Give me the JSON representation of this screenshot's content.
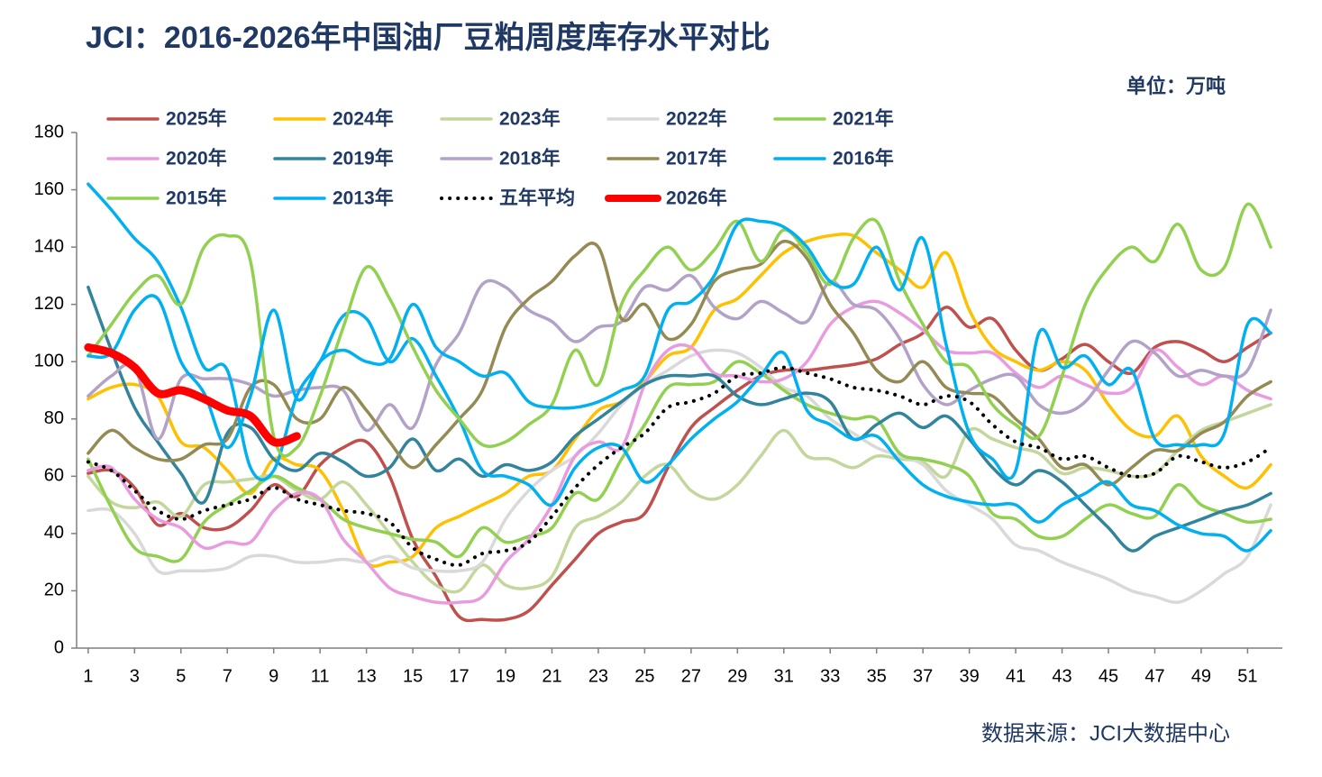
{
  "chart_data": {
    "type": "line",
    "title": "JCI：2016-2026年中国油厂豆粕周度库存水平对比",
    "unit": "单位：万吨",
    "source": "数据来源：JCI大数据中心",
    "x": [
      1,
      2,
      3,
      4,
      5,
      6,
      7,
      8,
      9,
      10,
      11,
      12,
      13,
      14,
      15,
      16,
      17,
      18,
      19,
      20,
      21,
      22,
      23,
      24,
      25,
      26,
      27,
      28,
      29,
      30,
      31,
      32,
      33,
      34,
      35,
      36,
      37,
      38,
      39,
      40,
      41,
      42,
      43,
      44,
      45,
      46,
      47,
      48,
      49,
      50,
      51,
      52
    ],
    "xlim": [
      0.5,
      52.5
    ],
    "xticks": [
      1,
      3,
      5,
      7,
      9,
      11,
      13,
      15,
      17,
      19,
      21,
      23,
      25,
      27,
      29,
      31,
      33,
      35,
      37,
      39,
      41,
      43,
      45,
      47,
      49,
      51
    ],
    "ylim": [
      0,
      180
    ],
    "yticks": [
      0,
      20,
      40,
      60,
      80,
      100,
      120,
      140,
      160,
      180
    ],
    "grid": false,
    "legend": "top",
    "series": [
      {
        "name": "2025年",
        "color": "#c0504d",
        "style": "solid",
        "values": [
          61,
          62,
          56,
          43,
          47,
          42,
          42,
          48,
          57,
          53,
          64,
          70,
          72,
          60,
          38,
          25,
          11,
          10,
          10,
          13,
          22,
          31,
          40,
          44,
          47,
          63,
          77,
          84,
          90,
          95,
          97,
          97,
          98,
          99,
          101,
          106,
          110,
          119,
          112,
          115,
          104,
          97,
          101,
          106,
          100,
          96,
          105,
          107,
          104,
          100,
          105,
          110
        ]
      },
      {
        "name": "2024年",
        "color": "#ffc000",
        "style": "solid",
        "values": [
          87,
          91,
          92,
          88,
          72,
          70,
          62,
          54,
          66,
          64,
          62,
          48,
          30,
          30,
          32,
          42,
          46,
          50,
          54,
          60,
          62,
          73,
          83,
          86,
          93,
          102,
          105,
          118,
          122,
          130,
          138,
          142,
          144,
          144,
          138,
          132,
          126,
          138,
          118,
          105,
          100,
          97,
          100,
          97,
          85,
          76,
          74,
          81,
          67,
          60,
          56,
          64
        ]
      },
      {
        "name": "2023年",
        "color": "#c3d69b",
        "style": "solid",
        "values": [
          60,
          51,
          49,
          51,
          46,
          57,
          58,
          59,
          60,
          55,
          52,
          58,
          50,
          40,
          30,
          22,
          20,
          29,
          22,
          21,
          25,
          42,
          46,
          51,
          60,
          64,
          55,
          52,
          57,
          67,
          76,
          67,
          66,
          63,
          67,
          66,
          65,
          60,
          76,
          73,
          70,
          68,
          61,
          63,
          62,
          60,
          61,
          69,
          76,
          79,
          82,
          85
        ]
      },
      {
        "name": "2022年",
        "color": "#d9d9d9",
        "style": "solid",
        "values": [
          48,
          48,
          40,
          27,
          27,
          27,
          28,
          32,
          32,
          30,
          30,
          31,
          30,
          32,
          28,
          27,
          27,
          30,
          45,
          55,
          62,
          67,
          75,
          85,
          92,
          97,
          102,
          104,
          103,
          98,
          91,
          88,
          80,
          75,
          70,
          67,
          64,
          55,
          50,
          45,
          36,
          34,
          30,
          27,
          24,
          20,
          18,
          16,
          20,
          26,
          32,
          50
        ]
      },
      {
        "name": "2021年",
        "color": "#92d050",
        "style": "solid",
        "values": [
          66,
          49,
          35,
          32,
          31,
          44,
          50,
          55,
          60,
          56,
          52,
          45,
          42,
          40,
          38,
          37,
          32,
          42,
          37,
          39,
          42,
          54,
          52,
          66,
          78,
          91,
          92,
          93,
          100,
          96,
          90,
          85,
          82,
          80,
          80,
          68,
          66,
          64,
          60,
          47,
          45,
          39,
          39,
          45,
          50,
          47,
          46,
          57,
          50,
          47,
          44,
          45
        ]
      },
      {
        "name": "2020年",
        "color": "#e99be0",
        "style": "solid",
        "values": [
          62,
          63,
          52,
          45,
          42,
          35,
          37,
          37,
          48,
          54,
          52,
          38,
          30,
          21,
          18,
          16,
          16,
          18,
          30,
          38,
          50,
          67,
          72,
          70,
          92,
          104,
          105,
          96,
          95,
          93,
          94,
          100,
          113,
          119,
          121,
          117,
          111,
          104,
          103,
          103,
          96,
          91,
          95,
          92,
          89,
          91,
          104,
          98,
          92,
          95,
          90,
          87
        ]
      },
      {
        "name": "2019年",
        "color": "#31849b",
        "style": "solid",
        "values": [
          126,
          104,
          84,
          72,
          61,
          51,
          75,
          77,
          66,
          62,
          68,
          65,
          60,
          63,
          73,
          62,
          66,
          60,
          64,
          62,
          65,
          74,
          80,
          86,
          92,
          95,
          95,
          95,
          88,
          85,
          87,
          89,
          86,
          73,
          78,
          82,
          77,
          81,
          73,
          63,
          57,
          62,
          58,
          50,
          42,
          34,
          39,
          42,
          45,
          48,
          50,
          54
        ]
      },
      {
        "name": "2018年",
        "color": "#b3a2c7",
        "style": "solid",
        "values": [
          88,
          95,
          98,
          73,
          94,
          94,
          94,
          92,
          88,
          90,
          91,
          90,
          76,
          85,
          77,
          99,
          110,
          127,
          126,
          118,
          114,
          107,
          112,
          114,
          126,
          125,
          130,
          119,
          115,
          121,
          117,
          114,
          128,
          120,
          118,
          108,
          92,
          85,
          90,
          94,
          95,
          85,
          82,
          86,
          97,
          107,
          103,
          95,
          97,
          95,
          97,
          118
        ]
      },
      {
        "name": "2017年",
        "color": "#948a54",
        "style": "solid",
        "values": [
          68,
          76,
          70,
          66,
          66,
          71,
          73,
          91,
          92,
          80,
          80,
          91,
          83,
          72,
          63,
          71,
          80,
          90,
          112,
          122,
          128,
          137,
          140,
          115,
          120,
          108,
          113,
          128,
          132,
          134,
          142,
          136,
          120,
          110,
          97,
          93,
          100,
          91,
          89,
          88,
          80,
          73,
          63,
          64,
          57,
          63,
          69,
          69,
          75,
          79,
          88,
          93
        ]
      },
      {
        "name": "2016年",
        "color": "#00b0f0",
        "style": "solid",
        "values": [
          162,
          153,
          143,
          135,
          119,
          98,
          97,
          63,
          62,
          88,
          100,
          116,
          115,
          100,
          108,
          95,
          80,
          62,
          60,
          57,
          50,
          63,
          70,
          70,
          58,
          64,
          73,
          80,
          86,
          95,
          103,
          83,
          78,
          73,
          74,
          65,
          57,
          53,
          51,
          50,
          50,
          44,
          50,
          54,
          58,
          50,
          48,
          43,
          40,
          39,
          34,
          41
        ]
      },
      {
        "name": "2015年",
        "color": "#92d050",
        "style": "solid",
        "values": [
          102,
          113,
          124,
          130,
          120,
          140,
          144,
          135,
          74,
          70,
          88,
          112,
          133,
          122,
          105,
          90,
          80,
          71,
          72,
          78,
          85,
          104,
          92,
          120,
          132,
          140,
          132,
          139,
          149,
          135,
          146,
          138,
          127,
          143,
          149,
          128,
          113,
          100,
          98,
          85,
          78,
          74,
          95,
          120,
          133,
          140,
          135,
          148,
          132,
          133,
          155,
          140
        ]
      },
      {
        "name": "2013年",
        "color": "#00b0f0",
        "style": "solid",
        "values": [
          102,
          103,
          118,
          122,
          100,
          89,
          70,
          88,
          118,
          87,
          100,
          104,
          100,
          101,
          120,
          105,
          100,
          95,
          96,
          86,
          84,
          84,
          86,
          90,
          95,
          118,
          121,
          130,
          148,
          149,
          147,
          140,
          128,
          127,
          140,
          125,
          143,
          106,
          75,
          66,
          62,
          110,
          98,
          102,
          92,
          97,
          73,
          71,
          71,
          75,
          113,
          110
        ]
      },
      {
        "name": "五年平均",
        "color": "#000000",
        "style": "dotted",
        "values": [
          65,
          62,
          55,
          48,
          45,
          48,
          50,
          52,
          56,
          52,
          50,
          48,
          47,
          44,
          35,
          31,
          29,
          33,
          34,
          37,
          46,
          56,
          64,
          70,
          75,
          84,
          86,
          89,
          95,
          96,
          98,
          96,
          94,
          91,
          90,
          88,
          85,
          88,
          86,
          78,
          72,
          70,
          66,
          67,
          63,
          60,
          61,
          67,
          65,
          63,
          65,
          70
        ]
      },
      {
        "name": "2026年",
        "color": "#ff0000",
        "style": "thick",
        "values": [
          105,
          103,
          98,
          89,
          90,
          87,
          83,
          81,
          72,
          74,
          null,
          null,
          null,
          null,
          null,
          null,
          null,
          null,
          null,
          null,
          null,
          null,
          null,
          null,
          null,
          null,
          null,
          null,
          null,
          null,
          null,
          null,
          null,
          null,
          null,
          null,
          null,
          null,
          null,
          null,
          null,
          null,
          null,
          null,
          null,
          null,
          null,
          null,
          null,
          null,
          null,
          null
        ]
      }
    ]
  }
}
